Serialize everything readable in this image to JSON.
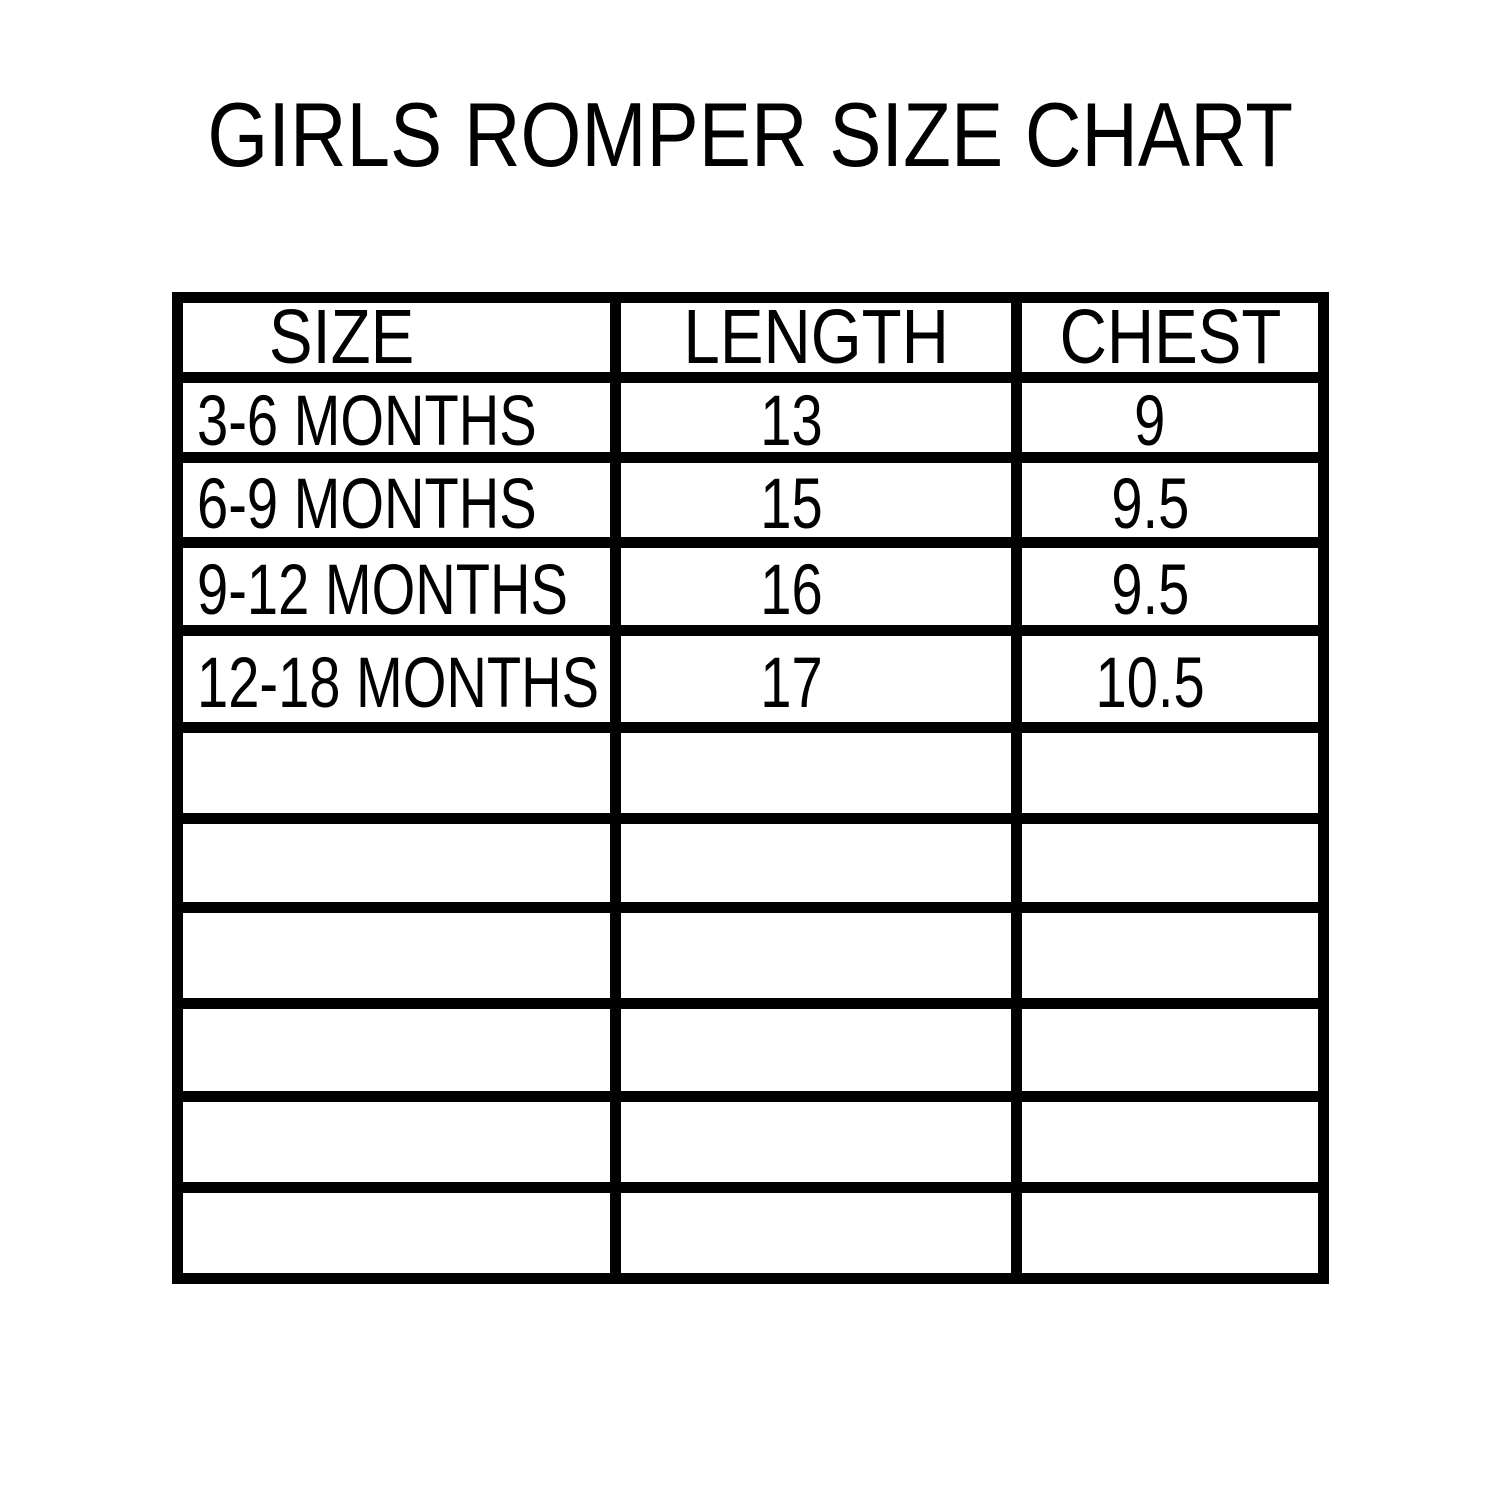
{
  "page": {
    "title": "GIRLS ROMPER SIZE CHART",
    "background_color": "#ffffff",
    "ink_color": "#000000"
  },
  "table": {
    "headers": {
      "size": "SIZE",
      "length": "LENGTH",
      "chest": "CHEST"
    },
    "rows": [
      {
        "size": "3-6 MONTHS",
        "length": "13",
        "chest": "9"
      },
      {
        "size": "6-9 MONTHS",
        "length": "15",
        "chest": "9.5"
      },
      {
        "size": "9-12 MONTHS",
        "length": "16",
        "chest": "9.5"
      },
      {
        "size": "12-18 MONTHS",
        "length": "17",
        "chest": "10.5"
      },
      {
        "size": "",
        "length": "",
        "chest": ""
      },
      {
        "size": "",
        "length": "",
        "chest": ""
      },
      {
        "size": "",
        "length": "",
        "chest": ""
      },
      {
        "size": "",
        "length": "",
        "chest": ""
      },
      {
        "size": "",
        "length": "",
        "chest": ""
      },
      {
        "size": "",
        "length": "",
        "chest": ""
      }
    ]
  },
  "chart_data": {
    "type": "table",
    "title": "GIRLS ROMPER SIZE CHART",
    "columns": [
      "SIZE",
      "LENGTH",
      "CHEST"
    ],
    "rows": [
      [
        "3-6 MONTHS",
        13,
        9
      ],
      [
        "6-9 MONTHS",
        15,
        9.5
      ],
      [
        "9-12 MONTHS",
        16,
        9.5
      ],
      [
        "12-18 MONTHS",
        17,
        10.5
      ]
    ],
    "empty_row_count": 6,
    "grid": "on",
    "units_shown": false
  }
}
